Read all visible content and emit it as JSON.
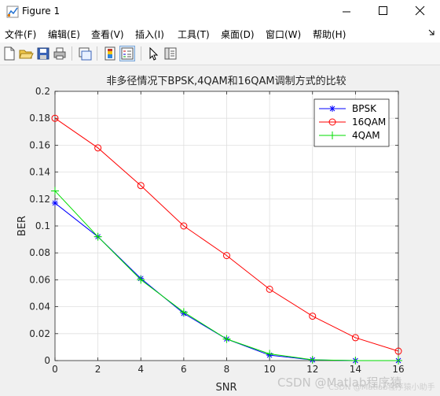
{
  "window": {
    "title": "Figure 1",
    "icon": "matlab-figure-icon",
    "controls": [
      "minimize-icon",
      "maximize-icon",
      "close-icon"
    ]
  },
  "menu": {
    "items": [
      {
        "label": "文件(F)"
      },
      {
        "label": "编辑(E)"
      },
      {
        "label": "查看(V)"
      },
      {
        "label": "插入(I)"
      },
      {
        "label": "工具(T)"
      },
      {
        "label": "桌面(D)"
      },
      {
        "label": "窗口(W)"
      },
      {
        "label": "帮助(H)"
      }
    ],
    "dock_icon": "dock-arrow-icon"
  },
  "toolbar": {
    "tools": [
      "new-figure-icon",
      "open-file-icon",
      "save-icon",
      "print-icon",
      "link-plot-icon",
      "colorbar-icon",
      "legend-icon",
      "pointer-icon",
      "property-editor-icon"
    ]
  },
  "watermark": {
    "main": "CSDN @Matlab程序猿",
    "shadow": "CSDN @Matlab程序猿小助手"
  },
  "chart_data": {
    "type": "line",
    "title": "非多径情况下BPSK,4QAM和16QAM调制方式的比较",
    "xlabel": "SNR",
    "ylabel": "BER",
    "xlim": [
      0,
      16
    ],
    "ylim": [
      0,
      0.2
    ],
    "xticks": [
      0,
      2,
      4,
      6,
      8,
      10,
      12,
      14,
      16
    ],
    "yticks": [
      0,
      0.02,
      0.04,
      0.06,
      0.08,
      0.1,
      0.12,
      0.14,
      0.16,
      0.18,
      0.2
    ],
    "grid": true,
    "legend_position": "top-right",
    "x": [
      0,
      2,
      4,
      6,
      8,
      10,
      12,
      14,
      16
    ],
    "series": [
      {
        "name": "BPSK",
        "color": "#0000ff",
        "marker": "asterisk",
        "values": [
          0.117,
          0.092,
          0.061,
          0.035,
          0.016,
          0.004,
          0.0005,
          0.0,
          0.0
        ]
      },
      {
        "name": "16QAM",
        "color": "#ff0000",
        "marker": "circle",
        "values": [
          0.18,
          0.158,
          0.13,
          0.1,
          0.078,
          0.053,
          0.033,
          0.017,
          0.007
        ]
      },
      {
        "name": "4QAM",
        "color": "#00dd00",
        "marker": "plus",
        "values": [
          0.126,
          0.092,
          0.06,
          0.036,
          0.016,
          0.005,
          0.0006,
          0.0,
          0.0
        ]
      }
    ]
  }
}
